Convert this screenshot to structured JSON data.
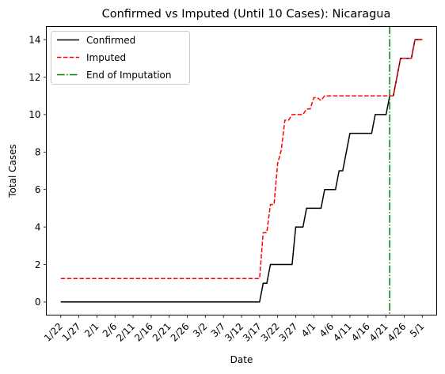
{
  "chart_data": {
    "type": "line",
    "title": "Confirmed vs Imputed (Until 10 Cases): Nicaragua",
    "xlabel": "Date",
    "ylabel": "Total Cases",
    "x_tick_labels": [
      "1/22",
      "1/27",
      "2/1",
      "2/6",
      "2/11",
      "2/16",
      "2/21",
      "2/26",
      "3/2",
      "3/7",
      "3/12",
      "3/17",
      "3/22",
      "3/27",
      "4/1",
      "4/6",
      "4/11",
      "4/16",
      "4/21",
      "4/26",
      "5/1"
    ],
    "y_ticks": [
      0,
      2,
      4,
      6,
      8,
      10,
      12,
      14
    ],
    "xlim_days": [
      -4,
      104
    ],
    "ylim": [
      -0.7,
      14.7
    ],
    "grid": false,
    "legend_position": "top-left",
    "start_date": "1/22",
    "series": [
      {
        "name": "Confirmed",
        "color": "#000000",
        "style": "solid",
        "points": [
          [
            "1/22",
            0
          ],
          [
            "3/17",
            0
          ],
          [
            "3/18",
            1
          ],
          [
            "3/19",
            1
          ],
          [
            "3/20",
            2
          ],
          [
            "3/26",
            2
          ],
          [
            "3/27",
            4
          ],
          [
            "3/29",
            4
          ],
          [
            "3/30",
            5
          ],
          [
            "4/3",
            5
          ],
          [
            "4/4",
            6
          ],
          [
            "4/7",
            6
          ],
          [
            "4/8",
            7
          ],
          [
            "4/9",
            7
          ],
          [
            "4/10",
            8
          ],
          [
            "4/11",
            9
          ],
          [
            "4/17",
            9
          ],
          [
            "4/18",
            10
          ],
          [
            "4/21",
            10
          ],
          [
            "4/22",
            11
          ],
          [
            "4/23",
            11
          ],
          [
            "4/24",
            12
          ],
          [
            "4/25",
            13
          ],
          [
            "4/28",
            13
          ],
          [
            "4/29",
            14
          ],
          [
            "5/1",
            14
          ]
        ]
      },
      {
        "name": "Imputed",
        "color": "#ff0000",
        "style": "dashed",
        "points": [
          [
            "1/22",
            1.25
          ],
          [
            "3/17",
            1.25
          ],
          [
            "3/18",
            3.7
          ],
          [
            "3/19",
            3.7
          ],
          [
            "3/20",
            5.2
          ],
          [
            "3/21",
            5.2
          ],
          [
            "3/22",
            7.4
          ],
          [
            "3/23",
            8.1
          ],
          [
            "3/24",
            9.7
          ],
          [
            "3/25",
            9.7
          ],
          [
            "3/26",
            10.0
          ],
          [
            "3/29",
            10.0
          ],
          [
            "3/30",
            10.3
          ],
          [
            "3/31",
            10.3
          ],
          [
            "4/1",
            10.9
          ],
          [
            "4/2",
            10.9
          ],
          [
            "4/3",
            10.75
          ],
          [
            "4/4",
            11
          ],
          [
            "4/23",
            11
          ],
          [
            "4/24",
            12
          ],
          [
            "4/25",
            13
          ],
          [
            "4/28",
            13
          ],
          [
            "4/29",
            14
          ],
          [
            "5/1",
            14
          ]
        ]
      }
    ],
    "vline": {
      "name": "End of Imputation",
      "x": "4/22",
      "color": "#008000",
      "style": "dashdot"
    }
  }
}
